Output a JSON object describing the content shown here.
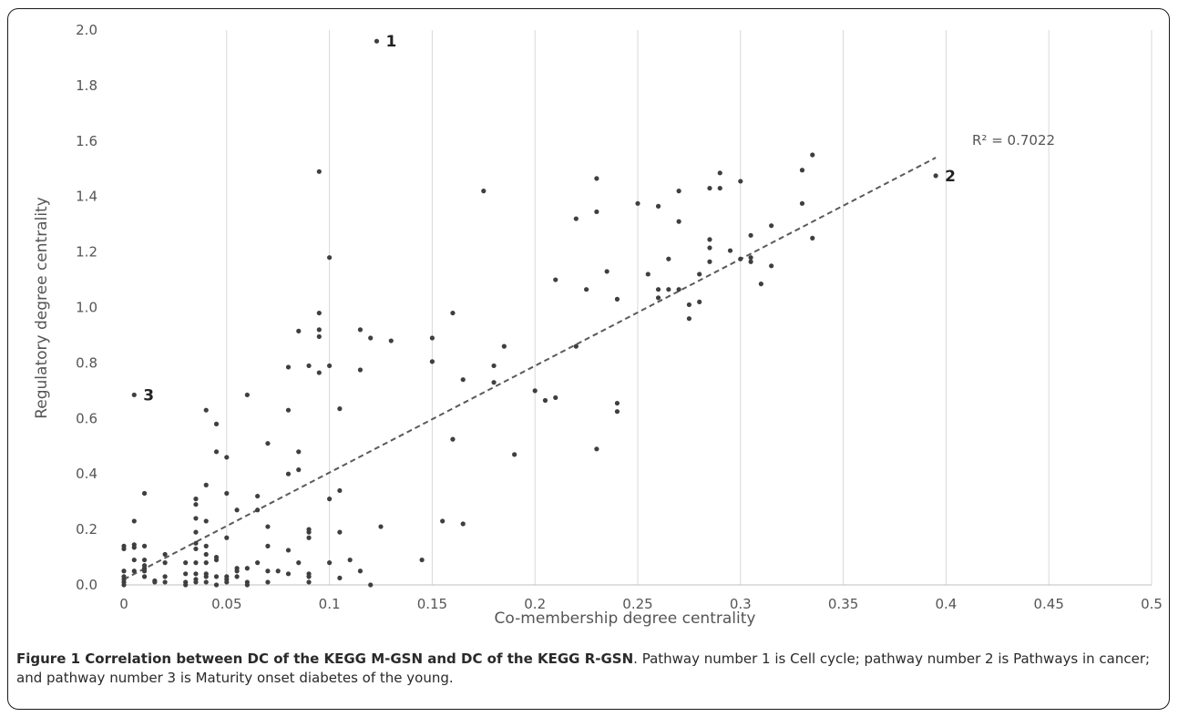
{
  "chart_data": {
    "type": "scatter",
    "title": "",
    "xlabel": "Co-membership degree centrality",
    "ylabel": "Regulatory degree centrality",
    "xlim": [
      0,
      0.5
    ],
    "ylim": [
      0,
      2.0
    ],
    "x_ticks": [
      "0",
      "0.05",
      "0.1",
      "0.15",
      "0.2",
      "0.25",
      "0.3",
      "0.35",
      "0.4",
      "0.45",
      "0.5"
    ],
    "y_ticks": [
      "0.0",
      "0.2",
      "0.4",
      "0.6",
      "0.8",
      "1.0",
      "1.2",
      "1.4",
      "1.6",
      "1.8",
      "2.0"
    ],
    "grid": "vertical",
    "trendline": {
      "x": [
        0,
        0.395
      ],
      "y": [
        0.02,
        1.54
      ],
      "style": "dashed",
      "label": "R² = 0.7022"
    },
    "annotations": [
      {
        "label": "1",
        "x": 0.123,
        "y": 1.96
      },
      {
        "label": "2",
        "x": 0.395,
        "y": 1.475
      },
      {
        "label": "3",
        "x": 0.005,
        "y": 0.685
      }
    ],
    "points": [
      [
        0.123,
        1.96
      ],
      [
        0.395,
        1.475
      ],
      [
        0.005,
        0.685
      ],
      [
        0.0,
        0.14
      ],
      [
        0.0,
        0.13
      ],
      [
        0.0,
        0.05
      ],
      [
        0.0,
        0.03
      ],
      [
        0.0,
        0.02
      ],
      [
        0.0,
        0.01
      ],
      [
        0.0,
        0.0
      ],
      [
        0.005,
        0.23
      ],
      [
        0.005,
        0.145
      ],
      [
        0.005,
        0.135
      ],
      [
        0.005,
        0.09
      ],
      [
        0.005,
        0.05
      ],
      [
        0.01,
        0.33
      ],
      [
        0.01,
        0.14
      ],
      [
        0.01,
        0.09
      ],
      [
        0.01,
        0.07
      ],
      [
        0.01,
        0.06
      ],
      [
        0.01,
        0.05
      ],
      [
        0.01,
        0.03
      ],
      [
        0.015,
        0.015
      ],
      [
        0.015,
        0.01
      ],
      [
        0.02,
        0.11
      ],
      [
        0.02,
        0.08
      ],
      [
        0.02,
        0.03
      ],
      [
        0.02,
        0.01
      ],
      [
        0.03,
        0.08
      ],
      [
        0.03,
        0.04
      ],
      [
        0.03,
        0.01
      ],
      [
        0.03,
        0.0
      ],
      [
        0.035,
        0.31
      ],
      [
        0.035,
        0.29
      ],
      [
        0.035,
        0.24
      ],
      [
        0.035,
        0.19
      ],
      [
        0.035,
        0.15
      ],
      [
        0.035,
        0.13
      ],
      [
        0.035,
        0.08
      ],
      [
        0.035,
        0.04
      ],
      [
        0.035,
        0.02
      ],
      [
        0.035,
        0.01
      ],
      [
        0.04,
        0.63
      ],
      [
        0.04,
        0.36
      ],
      [
        0.04,
        0.23
      ],
      [
        0.04,
        0.14
      ],
      [
        0.04,
        0.11
      ],
      [
        0.04,
        0.08
      ],
      [
        0.04,
        0.04
      ],
      [
        0.04,
        0.03
      ],
      [
        0.04,
        0.01
      ],
      [
        0.045,
        0.58
      ],
      [
        0.045,
        0.48
      ],
      [
        0.045,
        0.1
      ],
      [
        0.045,
        0.09
      ],
      [
        0.045,
        0.03
      ],
      [
        0.045,
        0.0
      ],
      [
        0.05,
        0.46
      ],
      [
        0.05,
        0.33
      ],
      [
        0.05,
        0.17
      ],
      [
        0.05,
        0.03
      ],
      [
        0.05,
        0.02
      ],
      [
        0.05,
        0.01
      ],
      [
        0.055,
        0.27
      ],
      [
        0.055,
        0.06
      ],
      [
        0.055,
        0.05
      ],
      [
        0.055,
        0.03
      ],
      [
        0.06,
        0.685
      ],
      [
        0.06,
        0.06
      ],
      [
        0.06,
        0.01
      ],
      [
        0.06,
        0.0
      ],
      [
        0.065,
        0.32
      ],
      [
        0.065,
        0.27
      ],
      [
        0.065,
        0.08
      ],
      [
        0.07,
        0.51
      ],
      [
        0.07,
        0.21
      ],
      [
        0.07,
        0.14
      ],
      [
        0.07,
        0.05
      ],
      [
        0.07,
        0.01
      ],
      [
        0.075,
        0.05
      ],
      [
        0.08,
        0.785
      ],
      [
        0.08,
        0.63
      ],
      [
        0.08,
        0.4
      ],
      [
        0.08,
        0.125
      ],
      [
        0.08,
        0.04
      ],
      [
        0.085,
        0.915
      ],
      [
        0.085,
        0.48
      ],
      [
        0.085,
        0.415
      ],
      [
        0.085,
        0.08
      ],
      [
        0.09,
        0.79
      ],
      [
        0.09,
        0.2
      ],
      [
        0.09,
        0.19
      ],
      [
        0.09,
        0.17
      ],
      [
        0.09,
        0.04
      ],
      [
        0.09,
        0.03
      ],
      [
        0.09,
        0.01
      ],
      [
        0.095,
        1.49
      ],
      [
        0.095,
        0.98
      ],
      [
        0.095,
        0.92
      ],
      [
        0.095,
        0.895
      ],
      [
        0.095,
        0.765
      ],
      [
        0.1,
        1.18
      ],
      [
        0.1,
        0.79
      ],
      [
        0.1,
        0.31
      ],
      [
        0.1,
        0.08
      ],
      [
        0.105,
        0.635
      ],
      [
        0.105,
        0.34
      ],
      [
        0.105,
        0.19
      ],
      [
        0.105,
        0.025
      ],
      [
        0.11,
        0.09
      ],
      [
        0.115,
        0.92
      ],
      [
        0.115,
        0.775
      ],
      [
        0.115,
        0.05
      ],
      [
        0.12,
        0.89
      ],
      [
        0.12,
        0.0
      ],
      [
        0.125,
        0.21
      ],
      [
        0.13,
        0.88
      ],
      [
        0.145,
        0.09
      ],
      [
        0.15,
        0.89
      ],
      [
        0.15,
        0.805
      ],
      [
        0.155,
        0.23
      ],
      [
        0.16,
        0.98
      ],
      [
        0.16,
        0.525
      ],
      [
        0.165,
        0.74
      ],
      [
        0.165,
        0.22
      ],
      [
        0.175,
        1.42
      ],
      [
        0.18,
        0.79
      ],
      [
        0.18,
        0.73
      ],
      [
        0.185,
        0.86
      ],
      [
        0.19,
        0.47
      ],
      [
        0.2,
        0.7
      ],
      [
        0.205,
        0.665
      ],
      [
        0.21,
        1.1
      ],
      [
        0.21,
        0.675
      ],
      [
        0.22,
        1.32
      ],
      [
        0.22,
        0.86
      ],
      [
        0.225,
        1.065
      ],
      [
        0.23,
        1.465
      ],
      [
        0.23,
        1.345
      ],
      [
        0.23,
        0.49
      ],
      [
        0.235,
        1.13
      ],
      [
        0.24,
        1.03
      ],
      [
        0.24,
        0.655
      ],
      [
        0.24,
        0.625
      ],
      [
        0.25,
        1.375
      ],
      [
        0.255,
        1.12
      ],
      [
        0.26,
        1.365
      ],
      [
        0.26,
        1.065
      ],
      [
        0.26,
        1.035
      ],
      [
        0.265,
        1.175
      ],
      [
        0.265,
        1.065
      ],
      [
        0.27,
        1.42
      ],
      [
        0.27,
        1.31
      ],
      [
        0.27,
        1.065
      ],
      [
        0.275,
        1.01
      ],
      [
        0.275,
        0.96
      ],
      [
        0.28,
        1.12
      ],
      [
        0.28,
        1.02
      ],
      [
        0.285,
        1.43
      ],
      [
        0.285,
        1.245
      ],
      [
        0.285,
        1.215
      ],
      [
        0.285,
        1.165
      ],
      [
        0.29,
        1.485
      ],
      [
        0.29,
        1.43
      ],
      [
        0.295,
        1.205
      ],
      [
        0.3,
        1.455
      ],
      [
        0.3,
        1.175
      ],
      [
        0.305,
        1.26
      ],
      [
        0.305,
        1.18
      ],
      [
        0.305,
        1.165
      ],
      [
        0.31,
        1.085
      ],
      [
        0.315,
        1.295
      ],
      [
        0.315,
        1.15
      ],
      [
        0.33,
        1.495
      ],
      [
        0.33,
        1.375
      ],
      [
        0.335,
        1.55
      ],
      [
        0.335,
        1.25
      ]
    ]
  },
  "caption": {
    "bold": "Figure 1 Correlation between DC of the KEGG M-GSN and DC of the KEGG R-GSN",
    "text": ". Pathway number 1 is Cell cycle; pathway number 2 is Pathways in cancer; and pathway number 3 is Maturity onset diabetes of the young."
  }
}
